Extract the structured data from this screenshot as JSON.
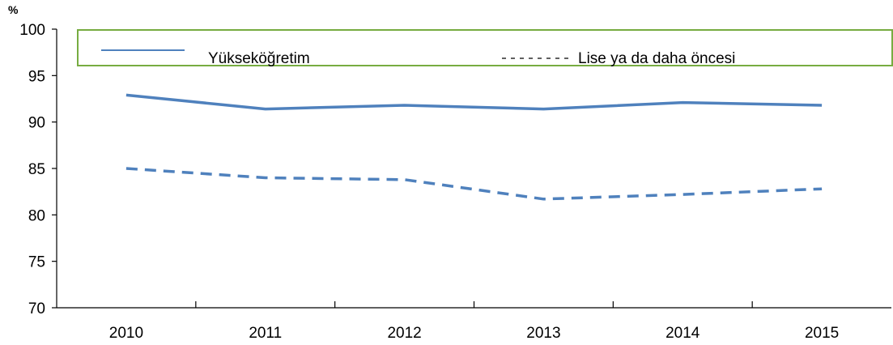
{
  "chart_data": {
    "type": "line",
    "title": "",
    "xlabel": "",
    "ylabel": "%",
    "ylim": [
      70,
      100
    ],
    "yticks": [
      70,
      75,
      80,
      85,
      90,
      95,
      100
    ],
    "categories": [
      "2010",
      "2011",
      "2012",
      "2013",
      "2014",
      "2015"
    ],
    "grid": false,
    "legend_position": "top",
    "series": [
      {
        "name": "Yükseköğretim",
        "line_style": "solid",
        "color": "#4F81BD",
        "values": [
          92.9,
          91.4,
          91.8,
          91.4,
          92.1,
          91.8
        ]
      },
      {
        "name": "Lise ya da daha öncesi",
        "line_style": "dashed",
        "color": "#4F81BD",
        "values": [
          85.0,
          84.0,
          83.8,
          81.7,
          82.2,
          82.8
        ]
      }
    ],
    "legend_border_color": "#77AC41"
  }
}
